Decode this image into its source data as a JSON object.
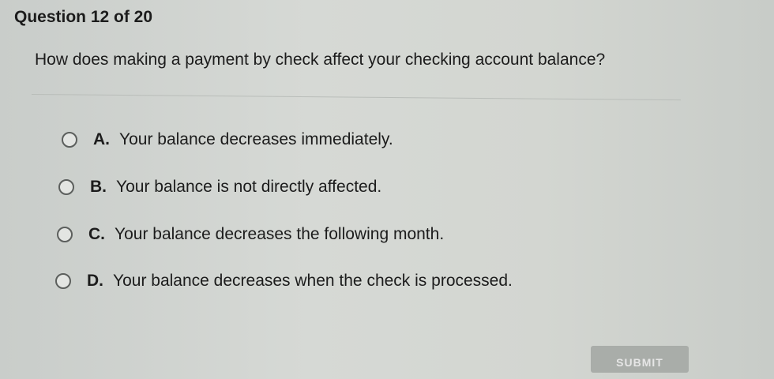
{
  "question": {
    "number_label": "Question 12 of 20",
    "text": "How does making a payment by check affect your checking account balance?"
  },
  "options": [
    {
      "letter": "A.",
      "text": "Your balance decreases immediately.",
      "selected": false
    },
    {
      "letter": "B.",
      "text": "Your balance is not directly affected.",
      "selected": false
    },
    {
      "letter": "C.",
      "text": "Your balance decreases the following month.",
      "selected": false
    },
    {
      "letter": "D.",
      "text": "Your balance decreases when the check is processed.",
      "selected": false
    }
  ],
  "submit_label": "SUBMIT"
}
